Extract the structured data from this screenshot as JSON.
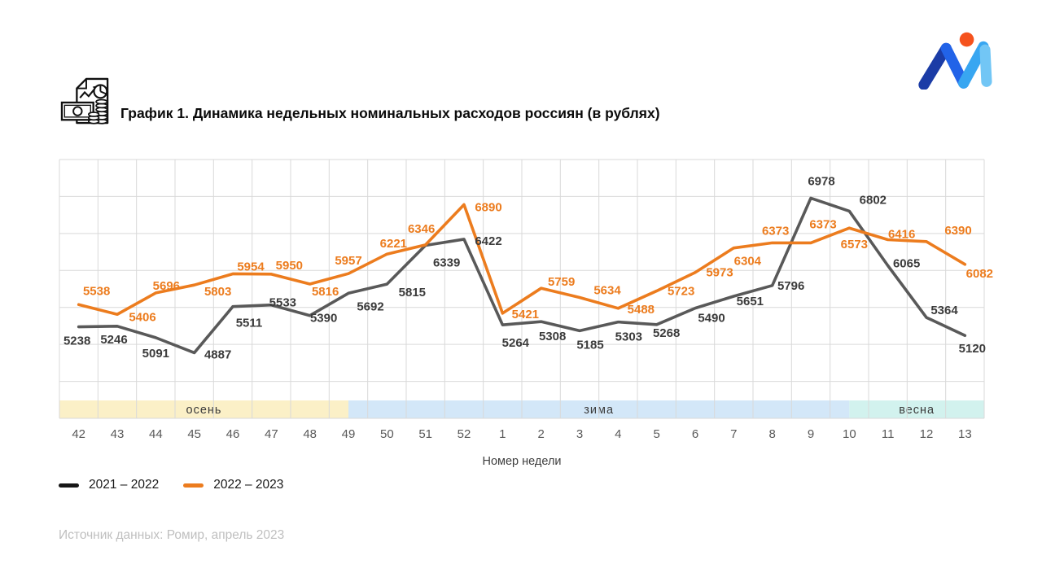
{
  "header": {
    "title": "График 1. Динамика недельных номинальных расходов россиян (в рублях)",
    "icon": "finance-document-chart-money-icon"
  },
  "logo": {
    "icon": "brand-m-logo-icon",
    "colors": {
      "stroke_dark": "#1B3CA6",
      "stroke_royal": "#2263E8",
      "stroke_sky": "#38A6F1",
      "stroke_light": "#72C6F5",
      "dot": "#F5521D"
    }
  },
  "chart_data": {
    "type": "line",
    "title": "График 1. Динамика недельных номинальных расходов россиян (в рублях)",
    "xlabel": "Номер недели",
    "ylabel": "",
    "x_categories": [
      "42",
      "43",
      "44",
      "45",
      "46",
      "47",
      "48",
      "49",
      "50",
      "51",
      "52",
      "1",
      "2",
      "3",
      "4",
      "5",
      "6",
      "7",
      "8",
      "9",
      "10",
      "11",
      "12",
      "13"
    ],
    "ylim": [
      4000,
      7500
    ],
    "y_grid_step": 500,
    "grid": true,
    "grid_color": "#D9D9D9",
    "tick_color": "#595959",
    "axis_title_color": "#3F3F3F",
    "legend_position": "bottom-left",
    "series": [
      {
        "name": "2021 – 2022",
        "color": "#595959",
        "label_color": "#3B3B3B",
        "legend_swatch_color": "#161616",
        "values": [
          5238,
          5246,
          5091,
          4887,
          5511,
          5533,
          5390,
          5692,
          5815,
          6339,
          6422,
          5264,
          5308,
          5185,
          5303,
          5268,
          5490,
          5651,
          5796,
          6978,
          6802,
          6065,
          5364,
          5120
        ],
        "label_offsets": [
          [
            -2,
            17
          ],
          [
            -4,
            16
          ],
          [
            0,
            19
          ],
          [
            29,
            2
          ],
          [
            20,
            20
          ],
          [
            14,
            -3
          ],
          [
            17,
            3
          ],
          [
            27,
            16
          ],
          [
            31,
            10
          ],
          [
            26,
            21
          ],
          [
            30,
            2
          ],
          [
            16,
            22
          ],
          [
            14,
            18
          ],
          [
            13,
            17
          ],
          [
            13,
            18
          ],
          [
            12,
            10
          ],
          [
            20,
            12
          ],
          [
            20,
            6
          ],
          [
            23,
            0
          ],
          [
            13,
            -21
          ],
          [
            29,
            -14
          ],
          [
            23,
            -3
          ],
          [
            22,
            -9
          ],
          [
            9,
            16
          ]
        ]
      },
      {
        "name": "2022 – 2023",
        "color": "#EC7C1E",
        "label_color": "#EC7C1E",
        "legend_swatch_color": "#EC7C1E",
        "values": [
          5538,
          5406,
          5696,
          5803,
          5954,
          5950,
          5816,
          5957,
          6221,
          6346,
          6890,
          5421,
          5759,
          5634,
          5488,
          5723,
          5973,
          6304,
          6373,
          6373,
          6573,
          6416,
          6390,
          6082
        ],
        "label_offsets": [
          [
            22,
            -17
          ],
          [
            31,
            3
          ],
          [
            13,
            -9
          ],
          [
            29,
            8
          ],
          [
            22,
            -9
          ],
          [
            22,
            -11
          ],
          [
            19,
            9
          ],
          [
            0,
            -16
          ],
          [
            8,
            -13
          ],
          [
            -5,
            -20
          ],
          [
            30,
            3
          ],
          [
            28,
            1
          ],
          [
            25,
            -8
          ],
          [
            34,
            -9
          ],
          [
            28,
            1
          ],
          [
            30,
            0
          ],
          [
            30,
            0
          ],
          [
            17,
            16
          ],
          [
            4,
            -15
          ],
          [
            15,
            -23
          ],
          [
            6,
            20
          ],
          [
            17,
            -7
          ],
          [
            39,
            -14
          ],
          [
            18,
            11
          ]
        ]
      }
    ],
    "season_bands": [
      {
        "label": "осень",
        "from": -0.5,
        "to": 7,
        "color": "#FBF0C7",
        "label_color": "#3A3A3A"
      },
      {
        "label": "зима",
        "from": 7,
        "to": 20,
        "color": "#D3E7F8",
        "label_color": "#3A3A3A"
      },
      {
        "label": "весна",
        "from": 20,
        "to": 23.5,
        "color": "#D2F2EE",
        "label_color": "#3A3A3A"
      }
    ]
  },
  "footer": {
    "source": "Источник данных: Ромир, апрель 2023"
  }
}
